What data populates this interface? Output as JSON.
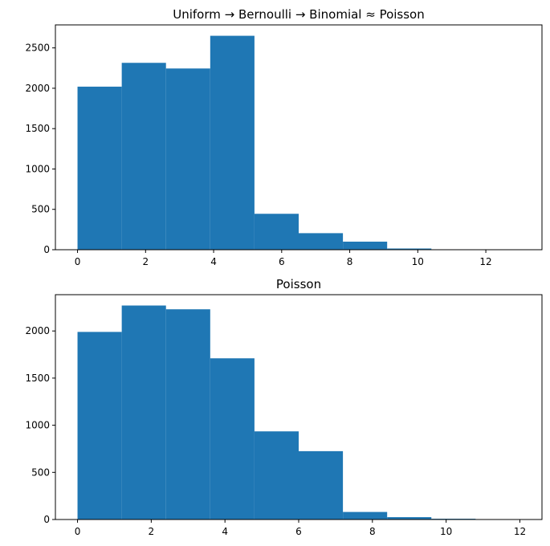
{
  "chart_data": [
    {
      "type": "bar",
      "subtype": "histogram",
      "title": "Uniform → Bernoulli → Binomial ≈ Poisson",
      "xlabel": "",
      "ylabel": "",
      "bin_edges": [
        0,
        1.3,
        2.6,
        3.9,
        5.2,
        6.5,
        7.8,
        9.1,
        10.4,
        11.7,
        13.0
      ],
      "values": [
        2020,
        2315,
        2245,
        2650,
        445,
        205,
        100,
        15,
        5,
        0
      ],
      "xlim": [
        -0.65,
        13.65
      ],
      "ylim": [
        0,
        2785
      ],
      "xticks": [
        0,
        2,
        4,
        6,
        8,
        10,
        12
      ],
      "xtick_labels": [
        "0",
        "2",
        "4",
        "6",
        "8",
        "10",
        "12"
      ],
      "yticks": [
        0,
        500,
        1000,
        1500,
        2000,
        2500
      ],
      "ytick_labels": [
        "0",
        "500",
        "1000",
        "1500",
        "2000",
        "2500"
      ],
      "color": "#1f77b4",
      "grid": false
    },
    {
      "type": "bar",
      "subtype": "histogram",
      "title": "Poisson",
      "xlabel": "",
      "ylabel": "",
      "bin_edges": [
        0,
        1.2,
        2.4,
        3.6,
        4.8,
        6.0,
        7.2,
        8.4,
        9.6,
        10.8,
        12.0
      ],
      "values": [
        1990,
        2270,
        2230,
        1710,
        935,
        725,
        80,
        25,
        8,
        2
      ],
      "xlim": [
        -0.6,
        12.6
      ],
      "ylim": [
        0,
        2385
      ],
      "xticks": [
        0,
        2,
        4,
        6,
        8,
        10,
        12
      ],
      "xtick_labels": [
        "0",
        "2",
        "4",
        "6",
        "8",
        "10",
        "12"
      ],
      "yticks": [
        0,
        500,
        1000,
        1500,
        2000
      ],
      "ytick_labels": [
        "0",
        "500",
        "1000",
        "1500",
        "2000"
      ],
      "color": "#1f77b4",
      "grid": false
    }
  ]
}
